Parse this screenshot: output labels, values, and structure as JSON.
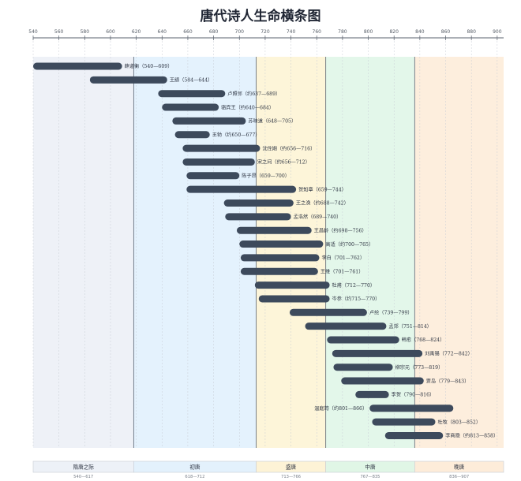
{
  "chart_data": {
    "type": "bar",
    "orientation": "horizontal-range",
    "title": "唐代诗人生命横条图",
    "xlim": [
      540,
      905
    ],
    "xticks": [
      540,
      560,
      580,
      600,
      620,
      640,
      660,
      680,
      700,
      720,
      740,
      760,
      780,
      800,
      820,
      840,
      860,
      880,
      900
    ],
    "grid": true,
    "bar_color": "#3d4a5c",
    "eras": [
      {
        "name": "隋唐之际",
        "range_label": "540—617",
        "start": 540,
        "end": 617,
        "color": "#eef1f7",
        "legend_color": "#edf1f7"
      },
      {
        "name": "初唐",
        "range_label": "618—712",
        "start": 618,
        "end": 712,
        "color": "#e4f2fd",
        "legend_color": "#e3f1fc"
      },
      {
        "name": "盛唐",
        "range_label": "713—766",
        "start": 713,
        "end": 766,
        "color": "#fdf5d9",
        "legend_color": "#fdf3d6"
      },
      {
        "name": "中唐",
        "range_label": "767—835",
        "start": 767,
        "end": 835,
        "color": "#e3f7ea",
        "legend_color": "#e0f6e6"
      },
      {
        "name": "晚唐",
        "range_label": "836—907",
        "start": 836,
        "end": 907,
        "color": "#fdeedd",
        "legend_color": "#fdecd9"
      }
    ],
    "poets": [
      {
        "label": "薛道衡（540—609）",
        "start": 540,
        "end": 609
      },
      {
        "label": "王绩（584—644）",
        "start": 584,
        "end": 644
      },
      {
        "label": "卢照邻（约637—689）",
        "start": 637,
        "end": 689
      },
      {
        "label": "骆宾王（约640—684）",
        "start": 640,
        "end": 684
      },
      {
        "label": "苏味道（648—705）",
        "start": 648,
        "end": 705
      },
      {
        "label": "王勃（约650—677）",
        "start": 650,
        "end": 677
      },
      {
        "label": "沈佺期（约656—716）",
        "start": 656,
        "end": 716
      },
      {
        "label": "宋之问（约656—712）",
        "start": 656,
        "end": 712
      },
      {
        "label": "陈子昂（659—700）",
        "start": 659,
        "end": 700
      },
      {
        "label": "贺知章（659—744）",
        "start": 659,
        "end": 744
      },
      {
        "label": "王之涣（约688—742）",
        "start": 688,
        "end": 742
      },
      {
        "label": "孟浩然（689—740）",
        "start": 689,
        "end": 740
      },
      {
        "label": "王昌龄（约698—756）",
        "start": 698,
        "end": 756
      },
      {
        "label": "高适（约700—765）",
        "start": 700,
        "end": 765
      },
      {
        "label": "李白（701—762）",
        "start": 701,
        "end": 762
      },
      {
        "label": "王维（701—761）",
        "start": 701,
        "end": 761
      },
      {
        "label": "杜甫（712—770）",
        "start": 712,
        "end": 770
      },
      {
        "label": "岑参（约715—770）",
        "start": 715,
        "end": 770
      },
      {
        "label": "卢纶（739—799）",
        "start": 739,
        "end": 799
      },
      {
        "label": "孟郊（751—814）",
        "start": 751,
        "end": 814
      },
      {
        "label": "韩愈（768—824）",
        "start": 768,
        "end": 824
      },
      {
        "label": "刘禹锡（772—842）",
        "start": 772,
        "end": 842
      },
      {
        "label": "柳宗元（773—819）",
        "start": 773,
        "end": 819
      },
      {
        "label": "贾岛（779—843）",
        "start": 779,
        "end": 843
      },
      {
        "label": "李贺（790—816）",
        "start": 790,
        "end": 816
      },
      {
        "label": "温庭筠（约801—866）",
        "start": 801,
        "end": 866,
        "label_side": "left"
      },
      {
        "label": "杜牧（803—852）",
        "start": 803,
        "end": 852
      },
      {
        "label": "李商隐（约813—858）",
        "start": 813,
        "end": 858
      }
    ]
  }
}
